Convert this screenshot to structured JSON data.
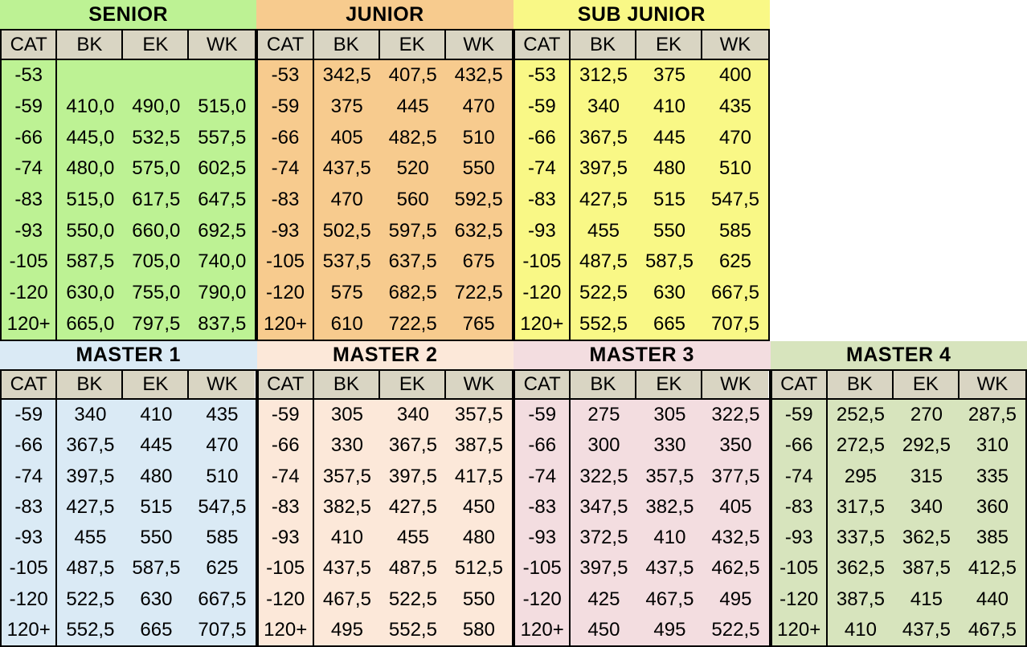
{
  "page": {
    "background": "#ffffff",
    "border_color": "#000000",
    "header_bg": "#d9d5c3",
    "text_color": "#000000",
    "column_headers": [
      "CAT",
      "BK",
      "EK",
      "WK"
    ]
  },
  "chart_data": [
    {
      "type": "table",
      "name": "senior",
      "title": "SENIOR",
      "position": "top",
      "bg": "#bdf294",
      "rows": [
        [
          "-53",
          "",
          "",
          ""
        ],
        [
          "-59",
          "410,0",
          "490,0",
          "515,0"
        ],
        [
          "-66",
          "445,0",
          "532,5",
          "557,5"
        ],
        [
          "-74",
          "480,0",
          "575,0",
          "602,5"
        ],
        [
          "-83",
          "515,0",
          "617,5",
          "647,5"
        ],
        [
          "-93",
          "550,0",
          "660,0",
          "692,5"
        ],
        [
          "-105",
          "587,5",
          "705,0",
          "740,0"
        ],
        [
          "-120",
          "630,0",
          "755,0",
          "790,0"
        ],
        [
          "120+",
          "665,0",
          "797,5",
          "837,5"
        ]
      ]
    },
    {
      "type": "table",
      "name": "junior",
      "title": "JUNIOR",
      "position": "top",
      "bg": "#f7cb8e",
      "rows": [
        [
          "-53",
          "342,5",
          "407,5",
          "432,5"
        ],
        [
          "-59",
          "375",
          "445",
          "470"
        ],
        [
          "-66",
          "405",
          "482,5",
          "510"
        ],
        [
          "-74",
          "437,5",
          "520",
          "550"
        ],
        [
          "-83",
          "470",
          "560",
          "592,5"
        ],
        [
          "-93",
          "502,5",
          "597,5",
          "632,5"
        ],
        [
          "-105",
          "537,5",
          "637,5",
          "675"
        ],
        [
          "-120",
          "575",
          "682,5",
          "722,5"
        ],
        [
          "120+",
          "610",
          "722,5",
          "765"
        ]
      ]
    },
    {
      "type": "table",
      "name": "sub-junior",
      "title": "SUB JUNIOR",
      "position": "top",
      "bg": "#f9f886",
      "rows": [
        [
          "-53",
          "312,5",
          "375",
          "400"
        ],
        [
          "-59",
          "340",
          "410",
          "435"
        ],
        [
          "-66",
          "367,5",
          "445",
          "470"
        ],
        [
          "-74",
          "397,5",
          "480",
          "510"
        ],
        [
          "-83",
          "427,5",
          "515",
          "547,5"
        ],
        [
          "-93",
          "455",
          "550",
          "585"
        ],
        [
          "-105",
          "487,5",
          "587,5",
          "625"
        ],
        [
          "-120",
          "522,5",
          "630",
          "667,5"
        ],
        [
          "120+",
          "552,5",
          "665",
          "707,5"
        ]
      ]
    },
    {
      "type": "table",
      "name": "master-1",
      "title": "MASTER 1",
      "position": "bottom",
      "bg": "#daeaf5",
      "rows": [
        [
          "-59",
          "340",
          "410",
          "435"
        ],
        [
          "-66",
          "367,5",
          "445",
          "470"
        ],
        [
          "-74",
          "397,5",
          "480",
          "510"
        ],
        [
          "-83",
          "427,5",
          "515",
          "547,5"
        ],
        [
          "-93",
          "455",
          "550",
          "585"
        ],
        [
          "-105",
          "487,5",
          "587,5",
          "625"
        ],
        [
          "-120",
          "522,5",
          "630",
          "667,5"
        ],
        [
          "120+",
          "552,5",
          "665",
          "707,5"
        ]
      ]
    },
    {
      "type": "table",
      "name": "master-2",
      "title": "MASTER 2",
      "position": "bottom",
      "bg": "#fce8d9",
      "rows": [
        [
          "-59",
          "305",
          "340",
          "357,5"
        ],
        [
          "-66",
          "330",
          "367,5",
          "387,5"
        ],
        [
          "-74",
          "357,5",
          "397,5",
          "417,5"
        ],
        [
          "-83",
          "382,5",
          "427,5",
          "450"
        ],
        [
          "-93",
          "410",
          "455",
          "480"
        ],
        [
          "-105",
          "437,5",
          "487,5",
          "512,5"
        ],
        [
          "-120",
          "467,5",
          "522,5",
          "550"
        ],
        [
          "120+",
          "495",
          "552,5",
          "580"
        ]
      ]
    },
    {
      "type": "table",
      "name": "master-3",
      "title": "MASTER 3",
      "position": "bottom",
      "bg": "#f3dde0",
      "rows": [
        [
          "-59",
          "275",
          "305",
          "322,5"
        ],
        [
          "-66",
          "300",
          "330",
          "350"
        ],
        [
          "-74",
          "322,5",
          "357,5",
          "377,5"
        ],
        [
          "-83",
          "347,5",
          "382,5",
          "405"
        ],
        [
          "-93",
          "372,5",
          "410",
          "432,5"
        ],
        [
          "-105",
          "397,5",
          "437,5",
          "462,5"
        ],
        [
          "-120",
          "425",
          "467,5",
          "495"
        ],
        [
          "120+",
          "450",
          "495",
          "522,5"
        ]
      ]
    },
    {
      "type": "table",
      "name": "master-4",
      "title": "MASTER 4",
      "position": "bottom",
      "bg": "#d7e4bd",
      "rows": [
        [
          "-59",
          "252,5",
          "270",
          "287,5"
        ],
        [
          "-66",
          "272,5",
          "292,5",
          "310"
        ],
        [
          "-74",
          "295",
          "315",
          "335"
        ],
        [
          "-83",
          "317,5",
          "340",
          "360"
        ],
        [
          "-93",
          "337,5",
          "362,5",
          "385"
        ],
        [
          "-105",
          "362,5",
          "387,5",
          "412,5"
        ],
        [
          "-120",
          "387,5",
          "415",
          "440"
        ],
        [
          "120+",
          "410",
          "437,5",
          "467,5"
        ]
      ]
    }
  ]
}
